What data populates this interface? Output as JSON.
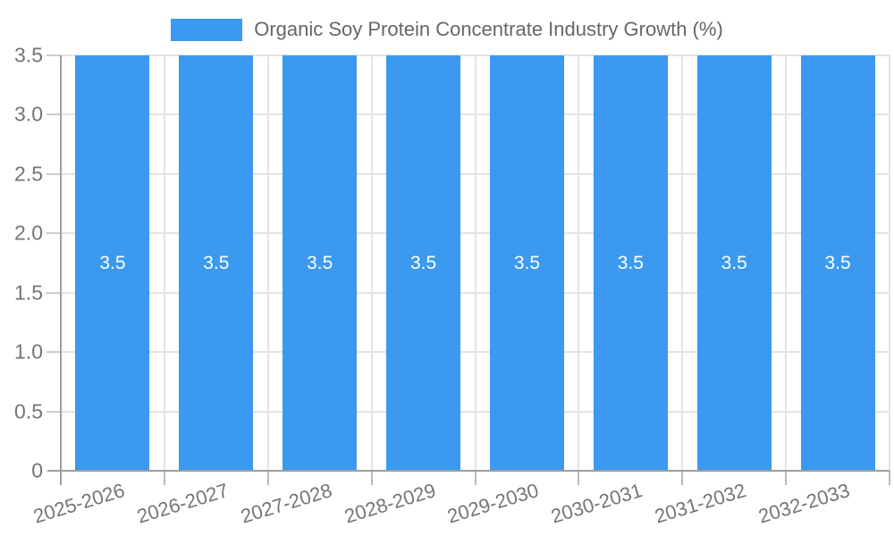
{
  "legend": {
    "label": "Organic Soy Protein Concentrate Industry Growth (%)",
    "swatch_color": "#3B99F0"
  },
  "chart_data": {
    "type": "bar",
    "title": "Organic Soy Protein Concentrate Industry Growth (%)",
    "categories": [
      "2025-2026",
      "2026-2027",
      "2027-2028",
      "2028-2029",
      "2029-2030",
      "2030-2031",
      "2031-2032",
      "2032-2033"
    ],
    "values": [
      3.5,
      3.5,
      3.5,
      3.5,
      3.5,
      3.5,
      3.5,
      3.5
    ],
    "bar_labels": [
      "3.5",
      "3.5",
      "3.5",
      "3.5",
      "3.5",
      "3.5",
      "3.5",
      "3.5"
    ],
    "xlabel": "",
    "ylabel": "",
    "ylim": [
      0,
      3.5
    ],
    "yticks": [
      0,
      0.5,
      1,
      1.5,
      2,
      2.5,
      3,
      3.5
    ],
    "ytick_labels": [
      "0",
      "0.5",
      "1.0",
      "1.5",
      "2.0",
      "2.5",
      "3.0",
      "3.5"
    ],
    "grid": true,
    "legend_position": "top",
    "bar_color": "#3B99F0",
    "bar_label_color": "#ffffff"
  },
  "colors": {
    "gridline": "#e3e3e3",
    "axis": "#9e9e9e",
    "tick": "#bbbbbb",
    "tick_text": "#757575",
    "legend_text": "#666666",
    "background": "#ffffff"
  }
}
